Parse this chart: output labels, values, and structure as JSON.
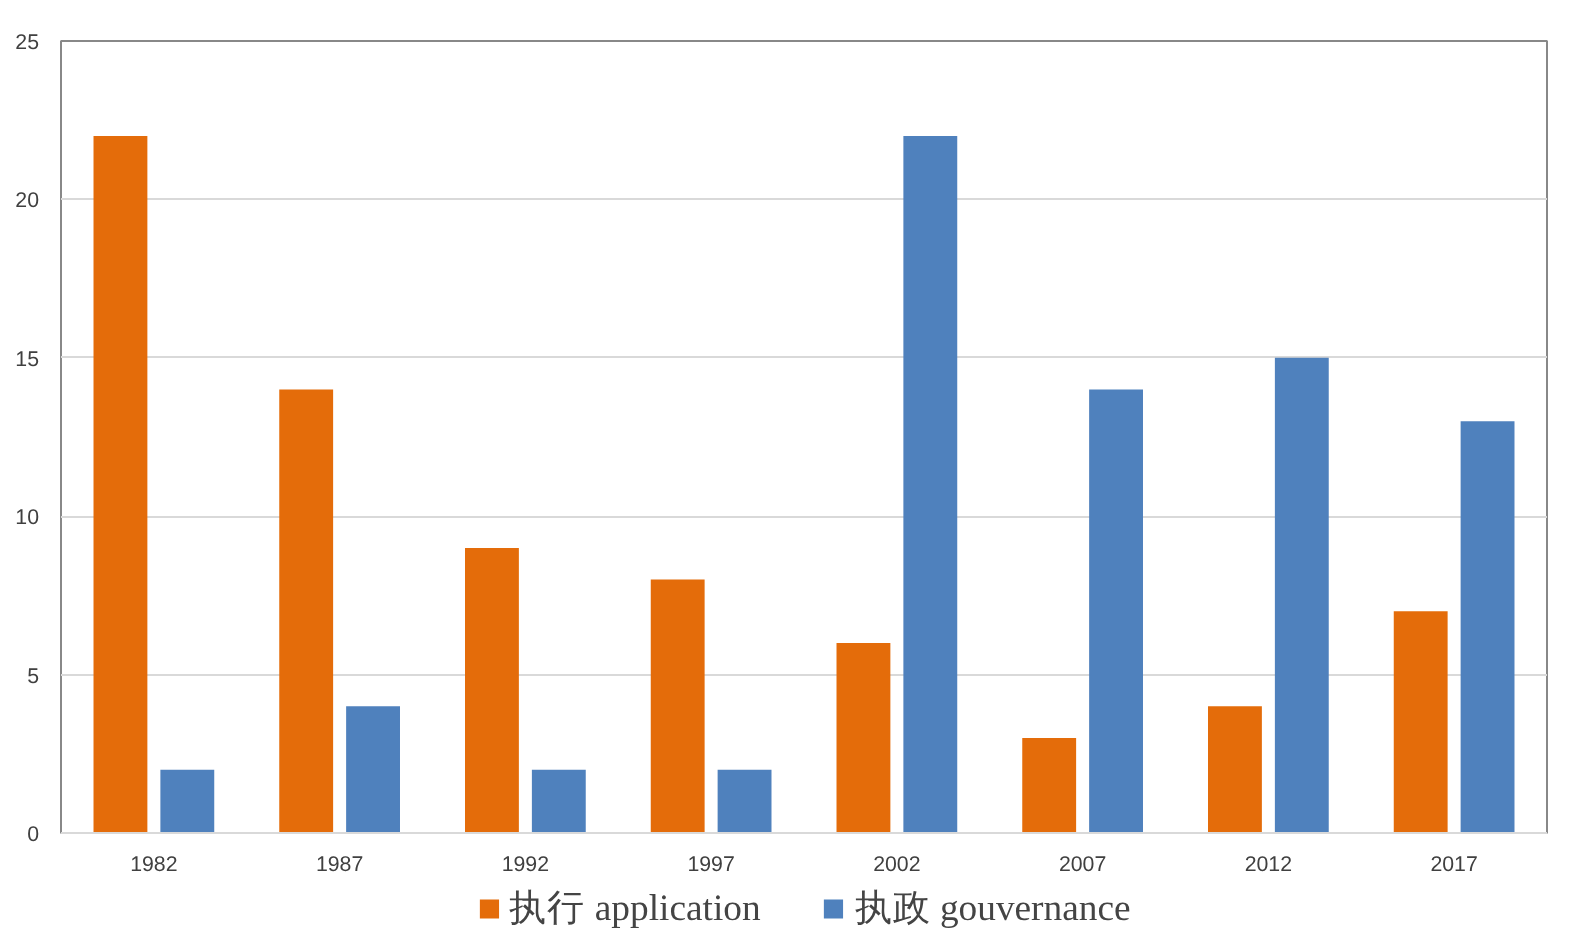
{
  "chart_data": {
    "type": "bar",
    "categories": [
      "1982",
      "1987",
      "1992",
      "1997",
      "2002",
      "2007",
      "2012",
      "2017"
    ],
    "series": [
      {
        "name": "执行 application",
        "color": "#e46c0a",
        "values": [
          22,
          14,
          9,
          8,
          6,
          3,
          4,
          7
        ]
      },
      {
        "name": "执政 gouvernance",
        "color": "#4f81bd",
        "values": [
          2,
          4,
          2,
          2,
          22,
          14,
          15,
          13
        ]
      }
    ],
    "ylim": [
      0,
      25
    ],
    "yticks": [
      0,
      5,
      10,
      15,
      20,
      25
    ],
    "grid": "y",
    "legend": "bottom"
  }
}
